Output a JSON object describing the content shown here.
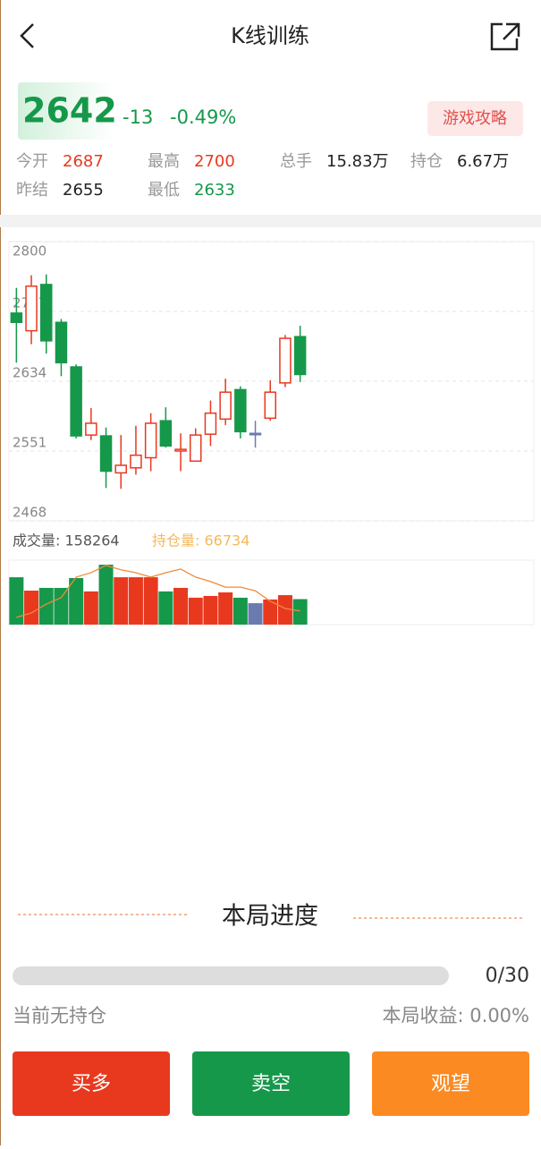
{
  "header": {
    "title": "K线训练",
    "price": "2642",
    "change": "-13",
    "change_pct": "-0.49%",
    "guide_button": "游戏攻略",
    "stats": [
      {
        "label": "今开",
        "value": "2687"
      },
      {
        "label": "最高",
        "value": "2700"
      },
      {
        "label": "总手",
        "value": "15.83万"
      },
      {
        "label": "持仓",
        "value": "6.67万"
      },
      {
        "label": "昨结",
        "value": "2655"
      },
      {
        "label": "最低",
        "value": "2633"
      }
    ]
  },
  "chart_data": [
    {
      "type": "candlestick",
      "up_color": "#e8391f",
      "down_color": "#16984a",
      "flat_color": "#6a7bb0",
      "open": [
        2715,
        2694,
        2749,
        2704,
        2651,
        2570,
        2569,
        2525,
        2531,
        2543,
        2587,
        2551,
        2539,
        2571,
        2589,
        2624,
        2572,
        2590,
        2632,
        2687
      ],
      "high": [
        2745,
        2760,
        2761,
        2708,
        2654,
        2602,
        2579,
        2570,
        2581,
        2596,
        2603,
        2572,
        2578,
        2611,
        2637,
        2628,
        2587,
        2635,
        2689,
        2700
      ],
      "low": [
        2656,
        2678,
        2667,
        2640,
        2566,
        2564,
        2507,
        2506,
        2523,
        2527,
        2555,
        2527,
        2539,
        2557,
        2582,
        2566,
        2555,
        2587,
        2627,
        2633
      ],
      "close": [
        2704,
        2747,
        2682,
        2656,
        2569,
        2584,
        2527,
        2534,
        2546,
        2584,
        2557,
        2553,
        2570,
        2596,
        2621,
        2574,
        2572,
        2621,
        2685,
        2642
      ],
      "ylim": [
        2468,
        2800
      ],
      "yticks": [
        2468,
        2551,
        2634,
        2717,
        2800
      ],
      "grid": true
    },
    {
      "type": "bar_line",
      "ylim": [
        0,
        400000
      ],
      "y2lim": [
        66700,
        66860
      ],
      "series": [
        {
          "name": "成交量: 158264",
          "color": "#555555",
          "values": [
            294000,
            211000,
            228000,
            228000,
            289000,
            206000,
            372000,
            294000,
            294000,
            294000,
            206000,
            228000,
            167000,
            178000,
            200000,
            167000,
            133000,
            156000,
            183000,
            158264
          ]
        },
        {
          "name": "持仓量: 66734",
          "color": "#f5b95a",
          "line_color": "#f08a3a",
          "axis": "y2",
          "values": [
            66718,
            66729,
            66751,
            66767,
            66818,
            66829,
            66847,
            66836,
            66829,
            66818,
            66829,
            66838,
            66818,
            66807,
            66793,
            66793,
            66784,
            66758,
            66740,
            66734
          ]
        }
      ]
    }
  ],
  "progress": {
    "title": "本局进度",
    "count": "0/30",
    "position": "当前无持仓",
    "profit": "本局收益: 0.00%"
  },
  "buttons": [
    "买多",
    "卖空",
    "观望"
  ]
}
